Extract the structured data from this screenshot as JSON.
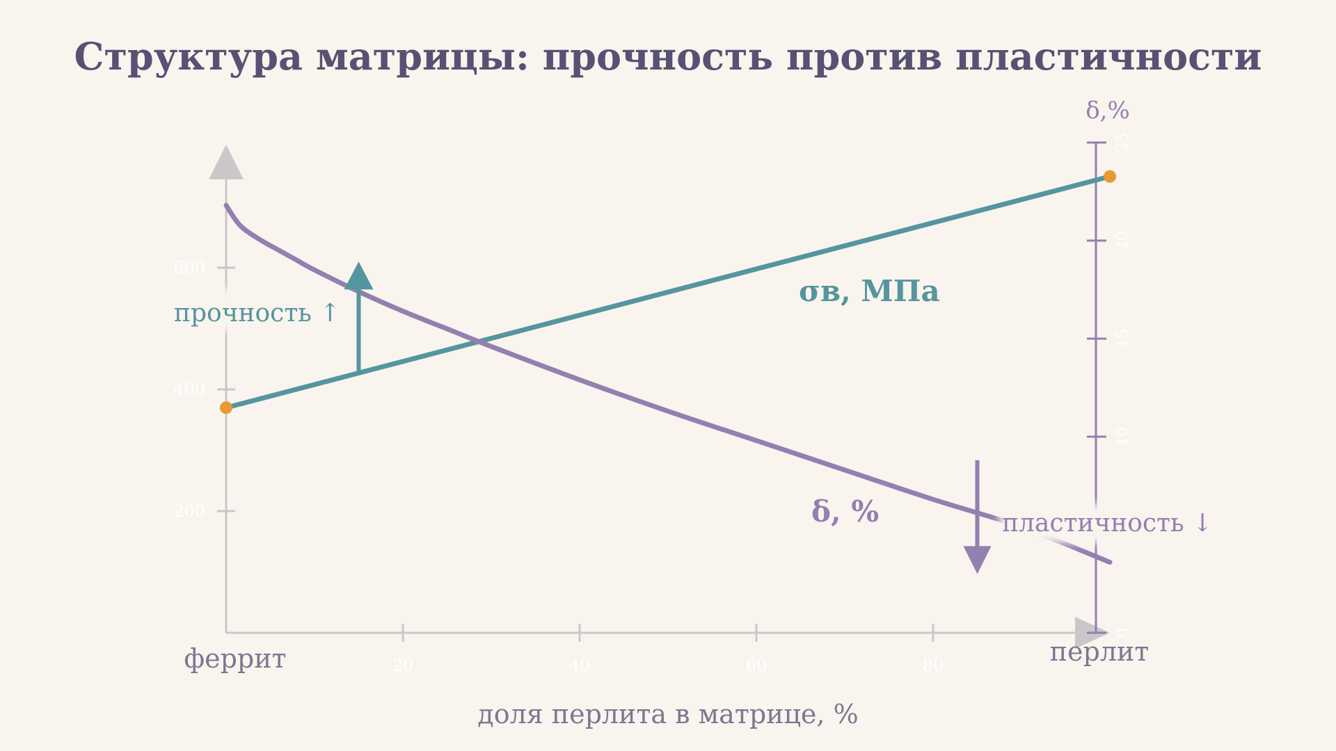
{
  "colors": {
    "background": "#f9f4ee",
    "title": "#575273",
    "axis": "#cbc7c9",
    "strength": "#55959e",
    "ductility": "#9280b0",
    "endpoint": "#e69a32",
    "corner_label": "#7d7791"
  },
  "chart_data": {
    "type": "line",
    "title": "Структура матрицы: прочность против пластичности",
    "xlabel": "доля перлита в матрице, %",
    "x_start_label": "феррит",
    "x_end_label": "перлит",
    "xlim": [
      0,
      100
    ],
    "x_ticks": [
      20,
      40,
      60,
      80
    ],
    "y_left": {
      "lim": [
        0,
        800
      ],
      "ticks": [
        200,
        400,
        600
      ]
    },
    "y_right": {
      "label": "δ,%",
      "lim": [
        0,
        25
      ],
      "ticks": [
        0,
        5,
        10,
        15,
        20,
        25
      ]
    },
    "series": [
      {
        "name": "σв, МПа",
        "axis": "left",
        "x": [
          0,
          100
        ],
        "y": [
          370,
          750
        ]
      },
      {
        "name": "δ, %",
        "axis": "right",
        "x": [
          0,
          1,
          2,
          4,
          6,
          8,
          10,
          15,
          20,
          25,
          30,
          40,
          50,
          60,
          70,
          80,
          90,
          100
        ],
        "y": [
          21.8,
          21.1,
          20.6,
          20.0,
          19.5,
          19.0,
          18.5,
          17.4,
          16.4,
          15.5,
          14.6,
          12.9,
          11.3,
          9.8,
          8.3,
          6.8,
          5.4,
          3.6
        ]
      }
    ],
    "annotations": {
      "strength_up": {
        "text": "прочность ↑",
        "x": 15,
        "y_from": 430,
        "y_to": 610
      },
      "ductility_down": {
        "text": "пластичность ↓",
        "x": 85,
        "y_from": 8.8,
        "y_to": 3.0
      }
    }
  }
}
